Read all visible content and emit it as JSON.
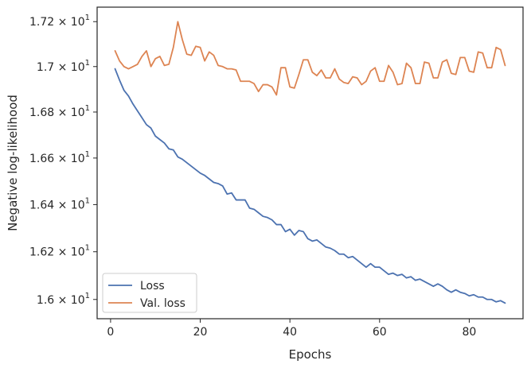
{
  "chart_data": {
    "type": "line",
    "xlabel": "Epochs",
    "ylabel": "Negative log-likelihood",
    "xlim": [
      -3,
      92
    ],
    "ylim": [
      15.92,
      17.265
    ],
    "yscale": "log",
    "grid": false,
    "legend_position": "lower-left",
    "x_ticks": [
      {
        "value": 0,
        "label": "0"
      },
      {
        "value": 20,
        "label": "20"
      },
      {
        "value": 40,
        "label": "40"
      },
      {
        "value": 60,
        "label": "60"
      },
      {
        "value": 80,
        "label": "80"
      }
    ],
    "y_ticks": [
      {
        "value": 16.0,
        "base": "1.6 × 10",
        "exp": "1"
      },
      {
        "value": 16.2,
        "base": "1.62 × 10",
        "exp": "1"
      },
      {
        "value": 16.4,
        "base": "1.64 × 10",
        "exp": "1"
      },
      {
        "value": 16.6,
        "base": "1.66 × 10",
        "exp": "1"
      },
      {
        "value": 16.8,
        "base": "1.68 × 10",
        "exp": "1"
      },
      {
        "value": 17.0,
        "base": "1.7 × 10",
        "exp": "1"
      },
      {
        "value": 17.2,
        "base": "1.72 × 10",
        "exp": "1"
      }
    ],
    "x": [
      1,
      2,
      3,
      4,
      5,
      6,
      7,
      8,
      9,
      10,
      11,
      12,
      13,
      14,
      15,
      16,
      17,
      18,
      19,
      20,
      21,
      22,
      23,
      24,
      25,
      26,
      27,
      28,
      29,
      30,
      31,
      32,
      33,
      34,
      35,
      36,
      37,
      38,
      39,
      40,
      41,
      42,
      43,
      44,
      45,
      46,
      47,
      48,
      49,
      50,
      51,
      52,
      53,
      54,
      55,
      56,
      57,
      58,
      59,
      60,
      61,
      62,
      63,
      64,
      65,
      66,
      67,
      68,
      69,
      70,
      71,
      72,
      73,
      74,
      75,
      76,
      77,
      78,
      79,
      80,
      81,
      82,
      83,
      84,
      85,
      86,
      87,
      88
    ],
    "series": [
      {
        "name": "Loss",
        "color": "#4c72b0",
        "values": [
          16.99,
          16.94,
          16.895,
          16.87,
          16.835,
          16.805,
          16.775,
          16.745,
          16.73,
          16.695,
          16.68,
          16.665,
          16.64,
          16.635,
          16.605,
          16.595,
          16.58,
          16.565,
          16.55,
          16.535,
          16.525,
          16.51,
          16.495,
          16.49,
          16.48,
          16.445,
          16.45,
          16.42,
          16.42,
          16.42,
          16.385,
          16.38,
          16.365,
          16.35,
          16.345,
          16.335,
          16.315,
          16.315,
          16.285,
          16.295,
          16.27,
          16.29,
          16.285,
          16.255,
          16.245,
          16.25,
          16.235,
          16.22,
          16.215,
          16.205,
          16.19,
          16.19,
          16.175,
          16.18,
          16.165,
          16.15,
          16.135,
          16.15,
          16.135,
          16.135,
          16.12,
          16.105,
          16.11,
          16.1,
          16.105,
          16.09,
          16.095,
          16.08,
          16.085,
          16.075,
          16.065,
          16.055,
          16.065,
          16.055,
          16.04,
          16.03,
          16.04,
          16.03,
          16.025,
          16.015,
          16.02,
          16.01,
          16.01,
          16.0,
          16.0,
          15.99,
          15.995,
          15.985
        ]
      },
      {
        "name": "Val. loss",
        "color": "#dd8452",
        "values": [
          17.07,
          17.025,
          17.0,
          16.99,
          17.0,
          17.01,
          17.045,
          17.07,
          17.0,
          17.035,
          17.045,
          17.005,
          17.01,
          17.085,
          17.2,
          17.12,
          17.055,
          17.05,
          17.09,
          17.085,
          17.025,
          17.065,
          17.05,
          17.005,
          17.0,
          16.99,
          16.99,
          16.985,
          16.935,
          16.935,
          16.935,
          16.925,
          16.89,
          16.92,
          16.92,
          16.91,
          16.875,
          16.995,
          16.995,
          16.91,
          16.905,
          16.965,
          17.03,
          17.03,
          16.975,
          16.96,
          16.985,
          16.95,
          16.95,
          16.99,
          16.945,
          16.93,
          16.925,
          16.955,
          16.95,
          16.92,
          16.935,
          16.98,
          16.995,
          16.935,
          16.935,
          17.005,
          16.975,
          16.92,
          16.925,
          17.015,
          16.995,
          16.925,
          16.925,
          17.02,
          17.015,
          16.95,
          16.95,
          17.02,
          17.03,
          16.97,
          16.965,
          17.04,
          17.04,
          16.98,
          16.975,
          17.065,
          17.06,
          16.995,
          16.995,
          17.085,
          17.075,
          17.005
        ]
      }
    ]
  }
}
